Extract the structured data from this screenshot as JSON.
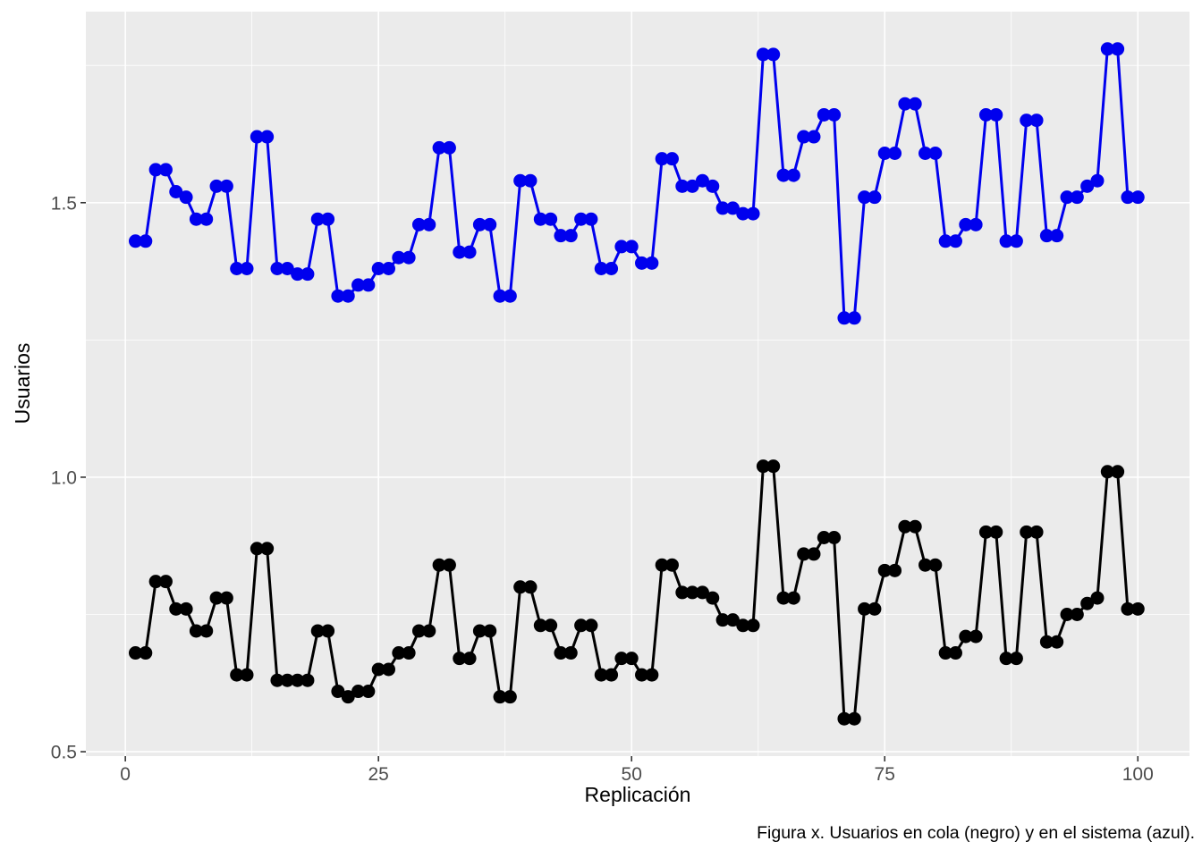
{
  "page": {
    "background": "#FFFFFF"
  },
  "chart_data": {
    "type": "line",
    "title": "",
    "xlabel": "Replicación",
    "ylabel": "Usuarios",
    "caption": "Figura x. Usuarios en cola (negro) y en el sistema (azul).",
    "legend_position": "none",
    "grid": true,
    "panel_bg": "#EBEBEB",
    "grid_color": "#FFFFFF",
    "tick_label_color": "#4D4D4D",
    "tick_mark_color": "#333333",
    "xlim": [
      -3.9,
      105.1
    ],
    "ylim": [
      0.492,
      1.848
    ],
    "x_major_ticks": [
      0,
      25,
      50,
      75,
      100
    ],
    "x_tick_labels": [
      "0",
      "25",
      "50",
      "75",
      "100"
    ],
    "x_minor_ticks": [
      12.5,
      37.5,
      62.5,
      87.5
    ],
    "y_major_ticks": [
      0.5,
      1.0,
      1.5
    ],
    "y_tick_labels": [
      "0.5",
      "1.0",
      "1.5"
    ],
    "y_minor_ticks": [
      0.75,
      1.25,
      1.75
    ],
    "x": [
      1,
      2,
      3,
      4,
      5,
      6,
      7,
      8,
      9,
      10,
      11,
      12,
      13,
      14,
      15,
      16,
      17,
      18,
      19,
      20,
      21,
      22,
      23,
      24,
      25,
      26,
      27,
      28,
      29,
      30,
      31,
      32,
      33,
      34,
      35,
      36,
      37,
      38,
      39,
      40,
      41,
      42,
      43,
      44,
      45,
      46,
      47,
      48,
      49,
      50,
      51,
      52,
      53,
      54,
      55,
      56,
      57,
      58,
      59,
      60,
      61,
      62,
      63,
      64,
      65,
      66,
      67,
      68,
      69,
      70,
      71,
      72,
      73,
      74,
      75,
      76,
      77,
      78,
      79,
      80,
      81,
      82,
      83,
      84,
      85,
      86,
      87,
      88,
      89,
      90,
      91,
      92,
      93,
      94,
      95,
      96,
      97,
      98,
      99,
      100
    ],
    "series": [
      {
        "name": "Usuarios en cola (negro)",
        "color": "#000000",
        "values": [
          0.68,
          0.68,
          0.81,
          0.81,
          0.76,
          0.76,
          0.72,
          0.72,
          0.78,
          0.78,
          0.64,
          0.64,
          0.87,
          0.87,
          0.63,
          0.63,
          0.63,
          0.63,
          0.72,
          0.72,
          0.61,
          0.6,
          0.61,
          0.61,
          0.65,
          0.65,
          0.68,
          0.68,
          0.72,
          0.72,
          0.84,
          0.84,
          0.67,
          0.67,
          0.72,
          0.72,
          0.6,
          0.6,
          0.8,
          0.8,
          0.73,
          0.73,
          0.68,
          0.68,
          0.73,
          0.73,
          0.64,
          0.64,
          0.67,
          0.67,
          0.64,
          0.64,
          0.84,
          0.84,
          0.79,
          0.79,
          0.79,
          0.78,
          0.74,
          0.74,
          0.73,
          0.73,
          1.02,
          1.02,
          0.78,
          0.78,
          0.86,
          0.86,
          0.89,
          0.89,
          0.56,
          0.56,
          0.76,
          0.76,
          0.83,
          0.83,
          0.91,
          0.91,
          0.84,
          0.84,
          0.68,
          0.68,
          0.71,
          0.71,
          0.9,
          0.9,
          0.67,
          0.67,
          0.9,
          0.9,
          0.7,
          0.7,
          0.75,
          0.75,
          0.77,
          0.78,
          1.01,
          1.01,
          0.76,
          0.76
        ]
      },
      {
        "name": "Usuarios en el sistema (azul)",
        "color": "#0000EE",
        "values": [
          1.43,
          1.43,
          1.56,
          1.56,
          1.52,
          1.51,
          1.47,
          1.47,
          1.53,
          1.53,
          1.38,
          1.38,
          1.62,
          1.62,
          1.38,
          1.38,
          1.37,
          1.37,
          1.47,
          1.47,
          1.33,
          1.33,
          1.35,
          1.35,
          1.38,
          1.38,
          1.4,
          1.4,
          1.46,
          1.46,
          1.6,
          1.6,
          1.41,
          1.41,
          1.46,
          1.46,
          1.33,
          1.33,
          1.54,
          1.54,
          1.47,
          1.47,
          1.44,
          1.44,
          1.47,
          1.47,
          1.38,
          1.38,
          1.42,
          1.42,
          1.39,
          1.39,
          1.58,
          1.58,
          1.53,
          1.53,
          1.54,
          1.53,
          1.49,
          1.49,
          1.48,
          1.48,
          1.77,
          1.77,
          1.55,
          1.55,
          1.62,
          1.62,
          1.66,
          1.66,
          1.29,
          1.29,
          1.51,
          1.51,
          1.59,
          1.59,
          1.68,
          1.68,
          1.59,
          1.59,
          1.43,
          1.43,
          1.46,
          1.46,
          1.66,
          1.66,
          1.43,
          1.43,
          1.65,
          1.65,
          1.44,
          1.44,
          1.51,
          1.51,
          1.53,
          1.54,
          1.78,
          1.78,
          1.51,
          1.51
        ]
      }
    ]
  }
}
